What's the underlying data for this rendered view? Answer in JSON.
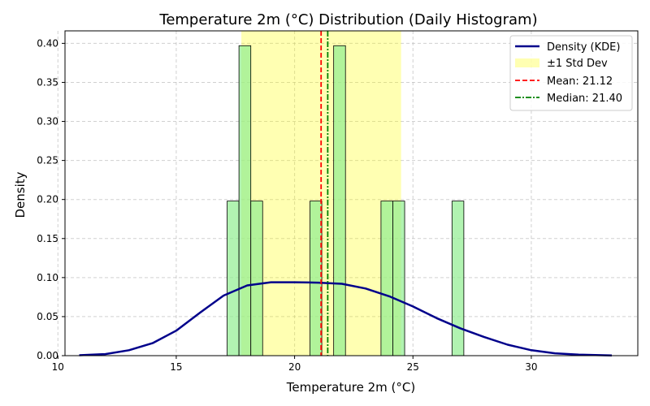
{
  "chart_data": {
    "type": "histogram",
    "title": "Temperature 2m (°C) Distribution (Daily Histogram)",
    "xlabel": "Temperature 2m (°C)",
    "ylabel": "Density",
    "xlim": [
      10.3,
      34.5
    ],
    "ylim": [
      0,
      0.416
    ],
    "xticks": [
      10,
      15,
      20,
      25,
      30
    ],
    "yticks": [
      0.0,
      0.05,
      0.1,
      0.15,
      0.2,
      0.25,
      0.3,
      0.35,
      0.4
    ],
    "ytick_labels": [
      "0.00",
      "0.05",
      "0.10",
      "0.15",
      "0.20",
      "0.25",
      "0.30",
      "0.35",
      "0.40"
    ],
    "grid": true,
    "legend_position": "top-right",
    "bins": [
      {
        "x0": 17.15,
        "x1": 17.65,
        "value": 0.198
      },
      {
        "x0": 17.65,
        "x1": 18.15,
        "value": 0.397
      },
      {
        "x0": 18.15,
        "x1": 18.65,
        "value": 0.198
      },
      {
        "x0": 20.65,
        "x1": 21.15,
        "value": 0.198
      },
      {
        "x0": 21.65,
        "x1": 22.15,
        "value": 0.397
      },
      {
        "x0": 23.65,
        "x1": 24.15,
        "value": 0.198
      },
      {
        "x0": 24.15,
        "x1": 24.65,
        "value": 0.198
      },
      {
        "x0": 26.65,
        "x1": 27.15,
        "value": 0.198
      }
    ],
    "kde": {
      "name": "Density (KDE)",
      "color": "#00008B",
      "x": [
        10.9,
        12,
        13,
        14,
        15,
        16,
        17,
        18,
        19,
        20,
        21,
        22,
        23,
        24,
        25,
        26,
        27,
        28,
        29,
        30,
        31,
        32,
        33.4
      ],
      "y": [
        0.0005,
        0.002,
        0.007,
        0.016,
        0.032,
        0.055,
        0.077,
        0.09,
        0.094,
        0.094,
        0.0935,
        0.092,
        0.086,
        0.076,
        0.063,
        0.048,
        0.035,
        0.024,
        0.014,
        0.007,
        0.003,
        0.0012,
        0.0003
      ]
    },
    "std_band": {
      "name": "±1 Std Dev",
      "x0": 17.75,
      "x1": 24.5,
      "color": "#FFFF00"
    },
    "mean": {
      "name": "Mean: 21.12",
      "value": 21.12,
      "color": "#FF0000"
    },
    "median": {
      "name": "Median: 21.40",
      "value": 21.4,
      "color": "#008000"
    },
    "colors": {
      "bar": "#90EE90",
      "bar_edge": "#000000",
      "axis": "#000000",
      "grid": "#b0b0b0"
    }
  }
}
